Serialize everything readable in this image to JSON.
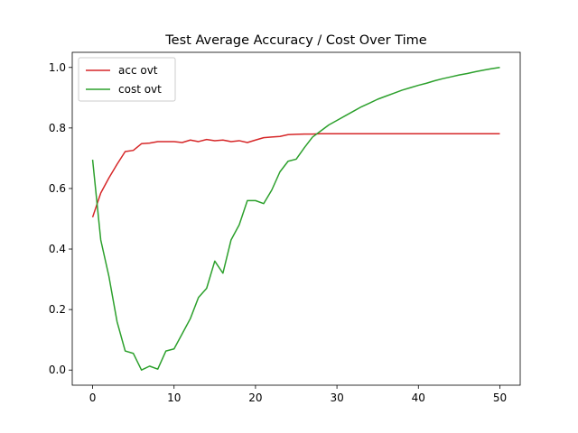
{
  "chart_data": {
    "type": "line",
    "title": "Test Average Accuracy / Cost Over Time",
    "xlabel": "",
    "ylabel": "",
    "xlim": [
      -2.5,
      52.5
    ],
    "ylim": [
      -0.05,
      1.05
    ],
    "xticks": [
      0,
      10,
      20,
      30,
      40,
      50
    ],
    "yticks": [
      0.0,
      0.2,
      0.4,
      0.6,
      0.8,
      1.0
    ],
    "ytick_labels": [
      "0.0",
      "0.2",
      "0.4",
      "0.6",
      "0.8",
      "1.0"
    ],
    "xtick_labels": [
      "0",
      "10",
      "20",
      "30",
      "40",
      "50"
    ],
    "grid": false,
    "legend_position": "top-left",
    "x": [
      0,
      1,
      2,
      3,
      4,
      5,
      6,
      7,
      8,
      9,
      10,
      11,
      12,
      13,
      14,
      15,
      16,
      17,
      18,
      19,
      20,
      21,
      22,
      23,
      24,
      25,
      26,
      27,
      28,
      29,
      30,
      31,
      32,
      33,
      34,
      35,
      36,
      37,
      38,
      39,
      40,
      41,
      42,
      43,
      44,
      45,
      46,
      47,
      48,
      49,
      50
    ],
    "series": [
      {
        "name": "acc ovt",
        "color": "#d62728",
        "values": [
          0.505,
          0.585,
          0.635,
          0.68,
          0.722,
          0.726,
          0.748,
          0.75,
          0.755,
          0.755,
          0.755,
          0.752,
          0.76,
          0.755,
          0.762,
          0.758,
          0.76,
          0.755,
          0.758,
          0.752,
          0.76,
          0.768,
          0.77,
          0.772,
          0.778,
          0.779,
          0.78,
          0.78,
          0.781,
          0.781,
          0.781,
          0.781,
          0.781,
          0.781,
          0.781,
          0.781,
          0.781,
          0.781,
          0.781,
          0.781,
          0.781,
          0.781,
          0.781,
          0.781,
          0.781,
          0.781,
          0.781,
          0.781,
          0.781,
          0.781,
          0.781
        ]
      },
      {
        "name": "cost ovt",
        "color": "#2ca02c",
        "values": [
          0.695,
          0.43,
          0.31,
          0.16,
          0.063,
          0.055,
          0.0,
          0.013,
          0.003,
          0.063,
          0.07,
          0.12,
          0.17,
          0.24,
          0.27,
          0.36,
          0.32,
          0.43,
          0.48,
          0.56,
          0.56,
          0.55,
          0.595,
          0.655,
          0.69,
          0.697,
          0.735,
          0.77,
          0.79,
          0.81,
          0.825,
          0.84,
          0.855,
          0.87,
          0.882,
          0.895,
          0.905,
          0.915,
          0.925,
          0.933,
          0.941,
          0.948,
          0.956,
          0.963,
          0.969,
          0.975,
          0.98,
          0.986,
          0.991,
          0.996,
          1.0
        ]
      }
    ]
  }
}
